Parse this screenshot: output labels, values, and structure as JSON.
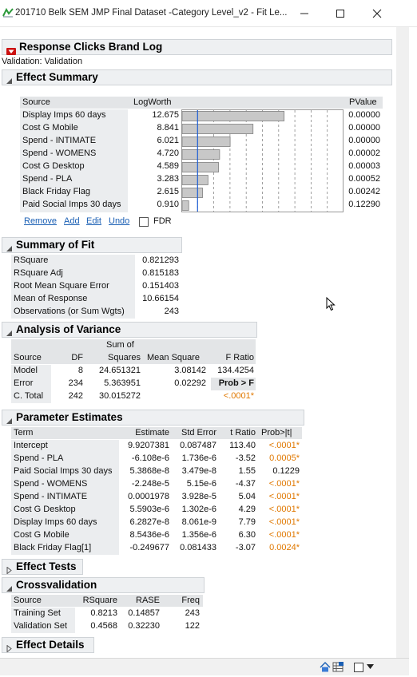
{
  "window": {
    "title": "201710 Belk SEM JMP Final Dataset -Category Level_v2 - Fit Le..."
  },
  "report": {
    "title": "Response Clicks Brand Log",
    "validation_note": "Validation: Validation"
  },
  "effect_summary": {
    "title": "Effect Summary",
    "col_source": "Source",
    "col_logworth": "LogWorth",
    "col_pvalue": "PValue",
    "reference_line": 2,
    "axis_max": 20,
    "rows": [
      {
        "source": "Display Imps 60 days",
        "logworth": "12.675",
        "value": 12.675,
        "pvalue": "0.00000"
      },
      {
        "source": "Cost G Mobile",
        "logworth": "8.841",
        "value": 8.841,
        "pvalue": "0.00000"
      },
      {
        "source": "Spend - INTIMATE",
        "logworth": "6.021",
        "value": 6.021,
        "pvalue": "0.00000"
      },
      {
        "source": "Spend - WOMENS",
        "logworth": "4.720",
        "value": 4.72,
        "pvalue": "0.00002"
      },
      {
        "source": "Cost G Desktop",
        "logworth": "4.589",
        "value": 4.589,
        "pvalue": "0.00003"
      },
      {
        "source": "Spend - PLA",
        "logworth": "3.283",
        "value": 3.283,
        "pvalue": "0.00052"
      },
      {
        "source": "Black Friday Flag",
        "logworth": "2.615",
        "value": 2.615,
        "pvalue": "0.00242"
      },
      {
        "source": "Paid Social Imps 30 days",
        "logworth": "0.910",
        "value": 0.91,
        "pvalue": "0.12290"
      }
    ],
    "buttons": {
      "remove": "Remove",
      "add": "Add",
      "edit": "Edit",
      "undo": "Undo"
    },
    "fdr_label": "FDR"
  },
  "summary_of_fit": {
    "title": "Summary of Fit",
    "rows": [
      {
        "label": "RSquare",
        "value": "0.821293"
      },
      {
        "label": "RSquare Adj",
        "value": "0.815183"
      },
      {
        "label": "Root Mean Square Error",
        "value": "0.151403"
      },
      {
        "label": "Mean of Response",
        "value": "10.66154"
      },
      {
        "label": "Observations (or Sum Wgts)",
        "value": "243"
      }
    ]
  },
  "anova": {
    "title": "Analysis of Variance",
    "headers": {
      "source": "Source",
      "df": "DF",
      "sum_top": "Sum of",
      "sum_bottom": "Squares",
      "mean_square": "Mean Square",
      "f_ratio": "F Ratio"
    },
    "rows": [
      {
        "source": "Model",
        "df": "8",
        "ss": "24.651321",
        "ms": "3.08142",
        "f": "134.4254"
      },
      {
        "source": "Error",
        "df": "234",
        "ss": "5.363951",
        "ms": "0.02292",
        "f": "Prob > F"
      },
      {
        "source": "C. Total",
        "df": "242",
        "ss": "30.015272",
        "ms": "",
        "f": "<.0001*"
      }
    ]
  },
  "parameter_estimates": {
    "title": "Parameter Estimates",
    "headers": {
      "term": "Term",
      "estimate": "Estimate",
      "std_error": "Std Error",
      "t_ratio": "t Ratio",
      "prob": "Prob>|t|"
    },
    "rows": [
      {
        "term": "Intercept",
        "estimate": "9.9207381",
        "se": "0.087487",
        "t": "113.40",
        "p": "<.0001*",
        "sig": true
      },
      {
        "term": "Spend - PLA",
        "estimate": "-6.108e-6",
        "se": "1.736e-6",
        "t": "-3.52",
        "p": "0.0005*",
        "sig": true
      },
      {
        "term": "Paid Social Imps 30 days",
        "estimate": "5.3868e-8",
        "se": "3.479e-8",
        "t": "1.55",
        "p": "0.1229",
        "sig": false
      },
      {
        "term": "Spend - WOMENS",
        "estimate": "-2.248e-5",
        "se": "5.15e-6",
        "t": "-4.37",
        "p": "<.0001*",
        "sig": true
      },
      {
        "term": "Spend - INTIMATE",
        "estimate": "0.0001978",
        "se": "3.928e-5",
        "t": "5.04",
        "p": "<.0001*",
        "sig": true
      },
      {
        "term": "Cost G Desktop",
        "estimate": "5.5903e-6",
        "se": "1.302e-6",
        "t": "4.29",
        "p": "<.0001*",
        "sig": true
      },
      {
        "term": "Display Imps 60 days",
        "estimate": "6.2827e-8",
        "se": "8.061e-9",
        "t": "7.79",
        "p": "<.0001*",
        "sig": true
      },
      {
        "term": "Cost G Mobile",
        "estimate": "8.5436e-6",
        "se": "1.356e-6",
        "t": "6.30",
        "p": "<.0001*",
        "sig": true
      },
      {
        "term": "Black Friday Flag[1]",
        "estimate": "-0.249677",
        "se": "0.081433",
        "t": "-3.07",
        "p": "0.0024*",
        "sig": true
      }
    ]
  },
  "effect_tests": {
    "title": "Effect Tests"
  },
  "crossvalidation": {
    "title": "Crossvalidation",
    "headers": {
      "source": "Source",
      "rsquare": "RSquare",
      "rase": "RASE",
      "freq": "Freq"
    },
    "rows": [
      {
        "source": "Training Set",
        "rsquare": "0.8213",
        "rase": "0.14857",
        "freq": "243"
      },
      {
        "source": "Validation Set",
        "rsquare": "0.4568",
        "rase": "0.32230",
        "freq": "122"
      }
    ]
  },
  "effect_details": {
    "title": "Effect Details"
  },
  "colors": {
    "accent_red": "#cc1111",
    "significant": "#e07800",
    "bar_fill": "#c8c8c8",
    "ref_line": "#1f5fd6"
  }
}
